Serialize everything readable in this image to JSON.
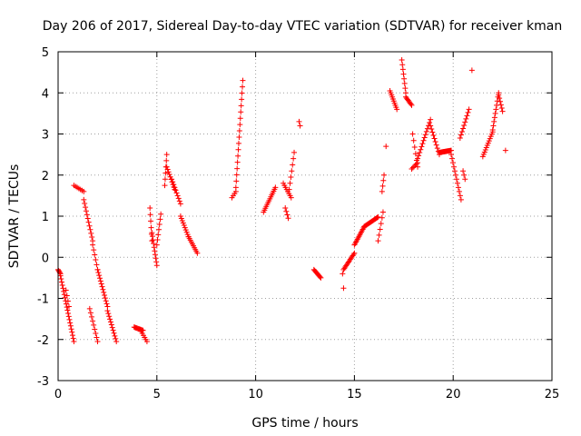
{
  "chart_data": {
    "type": "scatter",
    "title": "Day 206 of 2017, Sidereal Day-to-day VTEC variation (SDTVAR) for receiver kman",
    "xlabel": "GPS time / hours",
    "ylabel": "SDTVAR / TECUs",
    "xlim": [
      0,
      25
    ],
    "ylim": [
      -3,
      5
    ],
    "xticks": [
      0,
      5,
      10,
      15,
      20,
      25
    ],
    "yticks": [
      -3,
      -2,
      -1,
      0,
      1,
      2,
      3,
      4,
      5
    ],
    "grid": true,
    "marker": "+",
    "color": "#ff0000",
    "segments": [
      {
        "x0": 0.0,
        "x1": 0.12,
        "y0": -0.3,
        "y1": -0.4,
        "n": 5
      },
      {
        "x0": 0.12,
        "x1": 0.8,
        "y0": -0.45,
        "y1": -2.05,
        "n": 22
      },
      {
        "x0": 0.4,
        "x1": 0.55,
        "y0": -0.8,
        "y1": -1.2,
        "n": 4
      },
      {
        "x0": 0.8,
        "x1": 1.3,
        "y0": 1.75,
        "y1": 1.6,
        "n": 7
      },
      {
        "x0": 1.3,
        "x1": 1.75,
        "y0": 1.4,
        "y1": 0.4,
        "n": 12
      },
      {
        "x0": 1.6,
        "x1": 2.0,
        "y0": -1.25,
        "y1": -2.05,
        "n": 9
      },
      {
        "x0": 1.75,
        "x1": 2.0,
        "y0": 0.3,
        "y1": -0.3,
        "n": 6
      },
      {
        "x0": 2.0,
        "x1": 2.5,
        "y0": -0.3,
        "y1": -1.2,
        "n": 14
      },
      {
        "x0": 2.5,
        "x1": 2.95,
        "y0": -1.3,
        "y1": -2.05,
        "n": 12
      },
      {
        "x0": 3.85,
        "x1": 4.3,
        "y0": -1.7,
        "y1": -1.78,
        "n": 12
      },
      {
        "x0": 4.2,
        "x1": 4.5,
        "y0": -1.8,
        "y1": -2.05,
        "n": 6
      },
      {
        "x0": 4.65,
        "x1": 4.75,
        "y0": 1.2,
        "y1": 0.4,
        "n": 6
      },
      {
        "x0": 4.75,
        "x1": 5.0,
        "y0": 0.6,
        "y1": -0.2,
        "n": 10
      },
      {
        "x0": 5.0,
        "x1": 5.2,
        "y0": 0.3,
        "y1": 1.05,
        "n": 7
      },
      {
        "x0": 5.4,
        "x1": 5.5,
        "y0": 1.75,
        "y1": 2.5,
        "n": 6
      },
      {
        "x0": 5.5,
        "x1": 5.9,
        "y0": 2.2,
        "y1": 1.65,
        "n": 10
      },
      {
        "x0": 5.75,
        "x1": 6.2,
        "y0": 1.9,
        "y1": 1.3,
        "n": 10
      },
      {
        "x0": 6.2,
        "x1": 6.6,
        "y0": 1.0,
        "y1": 0.5,
        "n": 10
      },
      {
        "x0": 6.6,
        "x1": 7.05,
        "y0": 0.5,
        "y1": 0.1,
        "n": 10
      },
      {
        "x0": 8.8,
        "x1": 9.0,
        "y0": 1.45,
        "y1": 1.6,
        "n": 4
      },
      {
        "x0": 9.0,
        "x1": 9.35,
        "y0": 1.7,
        "y1": 4.3,
        "n": 18
      },
      {
        "x0": 10.4,
        "x1": 11.0,
        "y0": 1.1,
        "y1": 1.7,
        "n": 14
      },
      {
        "x0": 11.4,
        "x1": 11.8,
        "y0": 1.8,
        "y1": 1.45,
        "n": 8
      },
      {
        "x0": 11.5,
        "x1": 11.65,
        "y0": 1.2,
        "y1": 0.95,
        "n": 4
      },
      {
        "x0": 11.7,
        "x1": 11.95,
        "y0": 1.65,
        "y1": 2.55,
        "n": 7
      },
      {
        "x0": 12.2,
        "x1": 12.25,
        "y0": 3.3,
        "y1": 3.2,
        "n": 2
      },
      {
        "x0": 12.95,
        "x1": 13.3,
        "y0": -0.3,
        "y1": -0.5,
        "n": 10
      },
      {
        "x0": 14.4,
        "x1": 14.45,
        "y0": -0.4,
        "y1": -0.75,
        "n": 2
      },
      {
        "x0": 14.45,
        "x1": 15.0,
        "y0": -0.3,
        "y1": 0.1,
        "n": 14
      },
      {
        "x0": 15.0,
        "x1": 15.5,
        "y0": 0.3,
        "y1": 0.75,
        "n": 14
      },
      {
        "x0": 15.5,
        "x1": 16.2,
        "y0": 0.75,
        "y1": 0.98,
        "n": 16
      },
      {
        "x0": 16.2,
        "x1": 16.45,
        "y0": 0.4,
        "y1": 1.1,
        "n": 6
      },
      {
        "x0": 16.4,
        "x1": 16.5,
        "y0": 1.6,
        "y1": 2.0,
        "n": 4
      },
      {
        "x0": 16.6,
        "x1": 16.65,
        "y0": 2.7,
        "y1": 2.7,
        "n": 1
      },
      {
        "x0": 16.8,
        "x1": 17.15,
        "y0": 4.05,
        "y1": 3.6,
        "n": 10
      },
      {
        "x0": 17.4,
        "x1": 17.6,
        "y0": 4.8,
        "y1": 4.0,
        "n": 8
      },
      {
        "x0": 17.6,
        "x1": 17.9,
        "y0": 3.9,
        "y1": 3.7,
        "n": 8
      },
      {
        "x0": 17.9,
        "x1": 18.2,
        "y0": 2.15,
        "y1": 2.3,
        "n": 6
      },
      {
        "x0": 17.95,
        "x1": 18.2,
        "y0": 3.0,
        "y1": 2.2,
        "n": 6
      },
      {
        "x0": 18.2,
        "x1": 18.85,
        "y0": 2.4,
        "y1": 3.35,
        "n": 14
      },
      {
        "x0": 18.85,
        "x1": 19.3,
        "y0": 3.2,
        "y1": 2.5,
        "n": 10
      },
      {
        "x0": 19.3,
        "x1": 19.9,
        "y0": 2.55,
        "y1": 2.6,
        "n": 14
      },
      {
        "x0": 19.9,
        "x1": 20.4,
        "y0": 2.5,
        "y1": 1.4,
        "n": 12
      },
      {
        "x0": 20.35,
        "x1": 20.8,
        "y0": 2.9,
        "y1": 3.6,
        "n": 10
      },
      {
        "x0": 20.5,
        "x1": 20.6,
        "y0": 2.1,
        "y1": 1.9,
        "n": 3
      },
      {
        "x0": 20.95,
        "x1": 20.95,
        "y0": 4.55,
        "y1": 4.55,
        "n": 1
      },
      {
        "x0": 21.5,
        "x1": 22.0,
        "y0": 2.45,
        "y1": 3.05,
        "n": 12
      },
      {
        "x0": 22.0,
        "x1": 22.3,
        "y0": 3.1,
        "y1": 4.0,
        "n": 10
      },
      {
        "x0": 22.3,
        "x1": 22.5,
        "y0": 3.95,
        "y1": 3.55,
        "n": 6
      },
      {
        "x0": 22.65,
        "x1": 22.65,
        "y0": 2.6,
        "y1": 2.6,
        "n": 1
      }
    ]
  }
}
